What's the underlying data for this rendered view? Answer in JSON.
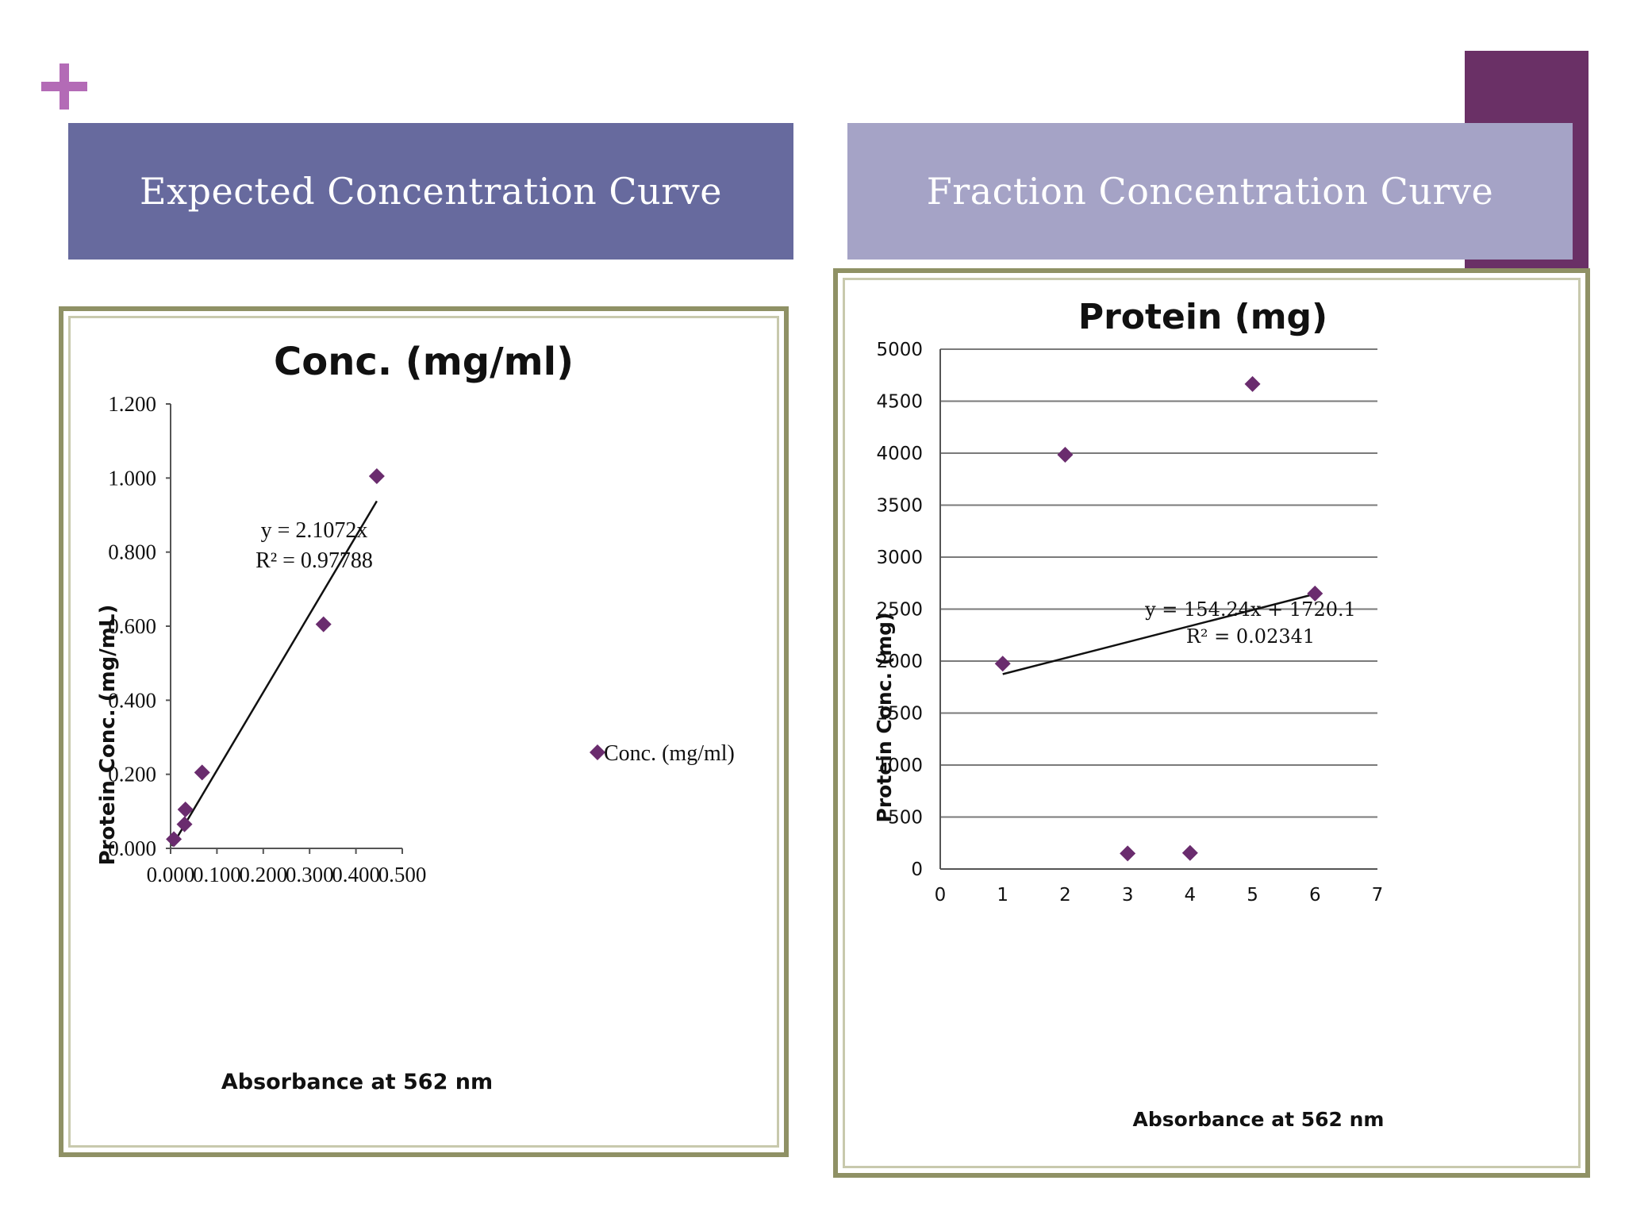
{
  "headers": {
    "left": "Expected Concentration Curve",
    "right": "Fraction Concentration Curve"
  },
  "colors": {
    "left_header": "#676a9e",
    "right_header": "#a5a3c6",
    "accent_block": "#6a3066",
    "plus": "#b36bb6",
    "marker": "#6a2c6e",
    "frame": "#8f9165"
  },
  "icons": {
    "plus": "plus-icon"
  },
  "chart_data": [
    {
      "type": "scatter",
      "title": "Conc. (mg/ml)",
      "xlabel": "Absorbance at 562 nm",
      "ylabel": "Protein Conc. (mg/mL)",
      "xlim": [
        0,
        0.5
      ],
      "ylim": [
        0,
        1.2
      ],
      "x_ticks": [
        "0.000",
        "0.100",
        "0.200",
        "0.300",
        "0.400",
        "0.500"
      ],
      "y_ticks": [
        "0.000",
        "0.200",
        "0.400",
        "0.600",
        "0.800",
        "1.000",
        "1.200"
      ],
      "grid": false,
      "legend": "right",
      "series": [
        {
          "name": "Conc. (mg/ml)",
          "x": [
            0.007,
            0.03,
            0.032,
            0.068,
            0.33,
            0.445
          ],
          "y": [
            0.025,
            0.065,
            0.105,
            0.205,
            0.605,
            1.005
          ]
        }
      ],
      "trendline": {
        "x_range": [
          0.003,
          0.445
        ],
        "slope": 2.1072,
        "intercept": 0,
        "equation": "y = 2.1072x",
        "r2": "R² = 0.97788"
      }
    },
    {
      "type": "scatter",
      "title": "Protein (mg)",
      "xlabel": "Absorbance at 562 nm",
      "ylabel": "Protein Conc. (mg)",
      "xlim": [
        0,
        7
      ],
      "ylim": [
        0,
        5000
      ],
      "x_ticks": [
        "0",
        "1",
        "2",
        "3",
        "4",
        "5",
        "6",
        "7"
      ],
      "y_ticks": [
        "0",
        "500",
        "1000",
        "1500",
        "2000",
        "2500",
        "3000",
        "3500",
        "4000",
        "4500",
        "5000"
      ],
      "grid": true,
      "series": [
        {
          "x": [
            1,
            2,
            3,
            4,
            5,
            6
          ],
          "y": [
            1975,
            3985,
            150,
            155,
            4665,
            2650
          ]
        }
      ],
      "trendline": {
        "x_range": [
          1,
          6
        ],
        "slope": 154.24,
        "intercept": 1720.1,
        "equation": "y = 154.24x + 1720.1",
        "r2": "R² = 0.02341"
      }
    }
  ]
}
